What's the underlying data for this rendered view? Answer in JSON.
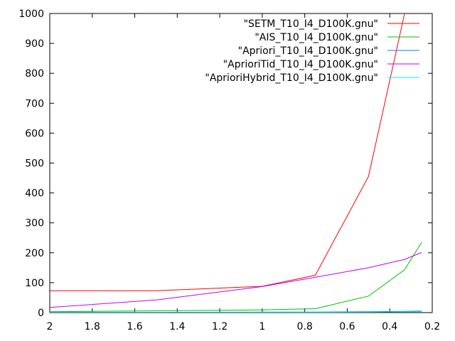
{
  "chart_data": {
    "type": "line",
    "title": "",
    "xlabel": "",
    "ylabel": "",
    "xlim": [
      2,
      0.2
    ],
    "ylim": [
      0,
      1000
    ],
    "x_reversed": true,
    "xticks": [
      "2",
      "1.8",
      "1.6",
      "1.4",
      "1.2",
      "1",
      "0.8",
      "0.6",
      "0.4",
      "0.2"
    ],
    "yticks": [
      "0",
      "100",
      "200",
      "300",
      "400",
      "500",
      "600",
      "700",
      "800",
      "900",
      "1000"
    ],
    "grid": false,
    "legend_position": "top-right",
    "series": [
      {
        "name": "\"SETM_T10_I4_D100K.gnu\"",
        "color": "#ff0000",
        "x": [
          2,
          1.5,
          1,
          0.75,
          0.5,
          0.33
        ],
        "y": [
          73,
          73,
          88,
          125,
          455,
          1000
        ],
        "clipped_beyond_ylim": true
      },
      {
        "name": "\"AIS_T10_I4_D100K.gnu\"",
        "color": "#00c000",
        "x": [
          2,
          1.5,
          1,
          0.75,
          0.5,
          0.33,
          0.25
        ],
        "y": [
          3,
          6,
          9,
          13,
          55,
          143,
          235
        ]
      },
      {
        "name": "\"Apriori_T10_I4_D100K.gnu\"",
        "color": "#0080ff",
        "x": [
          2,
          1.5,
          1,
          0.75,
          0.5,
          0.33,
          0.25
        ],
        "y": [
          1,
          1,
          2,
          2,
          3,
          4,
          5
        ]
      },
      {
        "name": "\"AprioriTid_T10_I4_D100K.gnu\"",
        "color": "#c000ff",
        "x": [
          2,
          1.5,
          1,
          0.75,
          0.5,
          0.33,
          0.25
        ],
        "y": [
          17,
          42,
          87,
          118,
          150,
          178,
          201
        ]
      },
      {
        "name": "\"AprioriHybrid_T10_I4_D100K.gnu\"",
        "color": "#00eeee",
        "x": [
          2,
          1.5,
          1,
          0.75,
          0.5,
          0.33,
          0.25
        ],
        "y": [
          0,
          0,
          1,
          1,
          2,
          3,
          3
        ]
      }
    ]
  }
}
